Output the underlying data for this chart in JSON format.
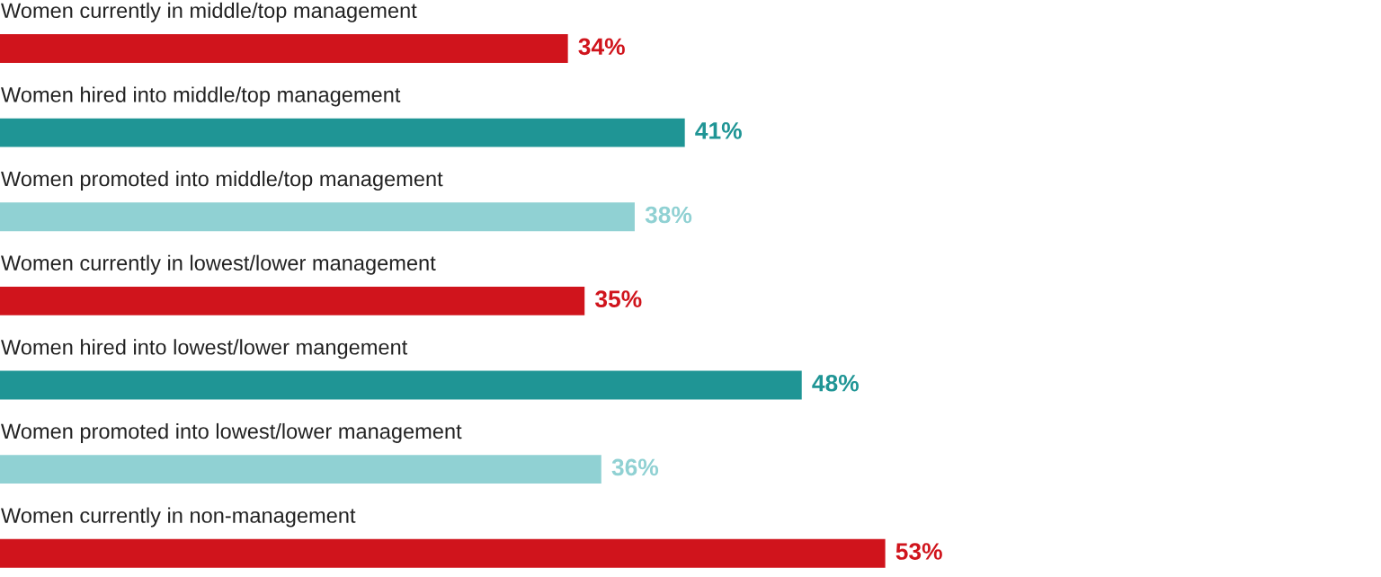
{
  "chart_data": {
    "type": "bar",
    "orientation": "horizontal",
    "categories": [
      "Women currently in middle/top management",
      "Women hired into middle/top management",
      "Women promoted into middle/top management",
      "Women currently in lowest/lower management",
      "Women hired into lowest/lower mangement",
      "Women promoted into lowest/lower management",
      "Women currently in non-management"
    ],
    "values": [
      34,
      41,
      38,
      35,
      48,
      36,
      53
    ],
    "colors": [
      "#d0141c",
      "#1f9595",
      "#90d1d3",
      "#d0141c",
      "#1f9595",
      "#90d1d3",
      "#d0141c"
    ],
    "value_labels": [
      "34%",
      "41%",
      "38%",
      "35%",
      "48%",
      "36%",
      "53%"
    ]
  }
}
